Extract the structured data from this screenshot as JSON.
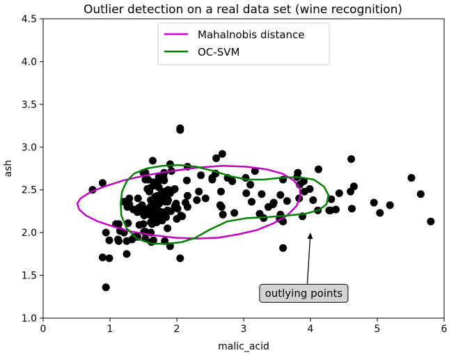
{
  "chart_data": {
    "type": "scatter",
    "title": "Outlier detection on a real data set (wine recognition)",
    "xlabel": "malic_acid",
    "ylabel": "ash",
    "xlim": [
      0,
      6
    ],
    "ylim": [
      1.0,
      4.5
    ],
    "xticks": [
      0,
      1,
      2,
      3,
      4,
      5,
      6
    ],
    "xtick_labels": [
      "0",
      "1",
      "2",
      "3",
      "4",
      "5",
      "6"
    ],
    "yticks": [
      1.0,
      1.5,
      2.0,
      2.5,
      3.0,
      3.5,
      4.0,
      4.5
    ],
    "ytick_labels": [
      "1.0",
      "1.5",
      "2.0",
      "2.5",
      "3.0",
      "3.5",
      "4.0",
      "4.5"
    ],
    "grid": false,
    "legend_position": "top-center",
    "points": [
      [
        1.71,
        2.43
      ],
      [
        1.78,
        2.14
      ],
      [
        2.36,
        2.67
      ],
      [
        1.95,
        2.5
      ],
      [
        2.59,
        2.87
      ],
      [
        1.76,
        2.45
      ],
      [
        1.87,
        2.45
      ],
      [
        2.15,
        2.61
      ],
      [
        1.64,
        2.17
      ],
      [
        1.35,
        2.27
      ],
      [
        2.16,
        2.3
      ],
      [
        1.48,
        2.32
      ],
      [
        1.73,
        2.41
      ],
      [
        1.73,
        2.39
      ],
      [
        1.87,
        2.38
      ],
      [
        1.81,
        2.7
      ],
      [
        1.92,
        2.72
      ],
      [
        1.57,
        2.62
      ],
      [
        1.59,
        2.48
      ],
      [
        3.1,
        2.56
      ],
      [
        1.63,
        2.28
      ],
      [
        3.8,
        2.65
      ],
      [
        1.86,
        2.36
      ],
      [
        1.6,
        2.52
      ],
      [
        1.81,
        2.61
      ],
      [
        2.05,
        3.22
      ],
      [
        1.77,
        2.62
      ],
      [
        1.72,
        2.14
      ],
      [
        1.9,
        2.8
      ],
      [
        1.68,
        2.21
      ],
      [
        1.5,
        2.7
      ],
      [
        1.66,
        2.36
      ],
      [
        1.83,
        2.36
      ],
      [
        1.53,
        2.7
      ],
      [
        1.8,
        2.65
      ],
      [
        1.81,
        2.41
      ],
      [
        1.64,
        2.84
      ],
      [
        1.65,
        2.55
      ],
      [
        1.5,
        2.1
      ],
      [
        3.83,
        2.4
      ],
      [
        1.7,
        2.12
      ],
      [
        1.97,
        2.51
      ],
      [
        1.65,
        2.59
      ],
      [
        1.5,
        2.22
      ],
      [
        3.99,
        2.51
      ],
      [
        3.59,
        2.62
      ],
      [
        1.68,
        2.36
      ],
      [
        2.01,
        2.28
      ],
      [
        2.65,
        2.32
      ],
      [
        1.6,
        2.3
      ],
      [
        1.73,
        2.65
      ],
      [
        1.9,
        2.46
      ],
      [
        3.37,
        2.3
      ],
      [
        1.61,
        2.38
      ],
      [
        1.68,
        2.42
      ],
      [
        1.78,
        2.24
      ],
      [
        1.99,
        2.34
      ],
      [
        1.65,
        2.55
      ],
      [
        1.53,
        2.21
      ],
      [
        1.43,
        2.29
      ],
      [
        0.94,
        1.36
      ],
      [
        1.12,
        1.92
      ],
      [
        2.0,
        2.16
      ],
      [
        1.73,
        2.53
      ],
      [
        1.37,
        1.95
      ],
      [
        1.27,
        2.11
      ],
      [
        1.25,
        1.9
      ],
      [
        1.21,
        2.0
      ],
      [
        1.09,
        2.1
      ],
      [
        1.21,
        2.36
      ],
      [
        1.67,
        2.38
      ],
      [
        0.99,
        1.7
      ],
      [
        1.41,
        1.95
      ],
      [
        1.61,
        2.0
      ],
      [
        1.76,
        2.19
      ],
      [
        1.53,
        2.01
      ],
      [
        4.43,
        2.46
      ],
      [
        2.67,
        2.3
      ],
      [
        1.82,
        1.9
      ],
      [
        0.89,
        1.71
      ],
      [
        2.06,
        2.2
      ],
      [
        1.33,
        1.92
      ],
      [
        1.61,
        2.12
      ],
      [
        2.05,
        1.7
      ],
      [
        1.51,
        2.2
      ],
      [
        1.72,
        2.26
      ],
      [
        1.82,
        2.43
      ],
      [
        1.67,
        2.41
      ],
      [
        2.08,
        2.19
      ],
      [
        1.53,
        2.27
      ],
      [
        1.86,
        2.26
      ],
      [
        1.51,
        2.01
      ],
      [
        1.62,
        2.23
      ],
      [
        1.65,
        2.16
      ],
      [
        1.63,
        2.1
      ],
      [
        1.65,
        1.91
      ],
      [
        1.29,
        2.4
      ],
      [
        1.84,
        2.18
      ],
      [
        1.9,
        1.84
      ],
      [
        1.62,
        1.89
      ],
      [
        1.13,
        2.1
      ],
      [
        0.99,
        1.91
      ],
      [
        3.59,
        1.82
      ],
      [
        1.13,
        1.9
      ],
      [
        1.41,
        2.24
      ],
      [
        1.15,
        2.02
      ],
      [
        1.74,
        2.34
      ],
      [
        1.81,
        2.48
      ],
      [
        3.04,
        2.46
      ],
      [
        3.44,
        2.33
      ],
      [
        1.44,
        2.09
      ],
      [
        1.26,
        2.3
      ],
      [
        2.13,
        2.35
      ],
      [
        1.91,
        2.25
      ],
      [
        1.82,
        2.44
      ],
      [
        3.24,
        2.22
      ],
      [
        1.86,
        2.05
      ],
      [
        0.94,
        2.0
      ],
      [
        1.42,
        2.4
      ],
      [
        1.67,
        2.31
      ],
      [
        2.43,
        2.4
      ],
      [
        4.11,
        2.26
      ],
      [
        4.04,
        2.38
      ],
      [
        2.53,
        2.64
      ],
      [
        1.29,
        2.33
      ],
      [
        1.21,
        2.36
      ],
      [
        1.61,
        2.2
      ],
      [
        1.53,
        1.93
      ],
      [
        2.69,
        2.21
      ],
      [
        2.86,
        2.23
      ],
      [
        4.3,
        2.26
      ],
      [
        3.81,
        2.7
      ],
      [
        4.12,
        2.74
      ],
      [
        3.45,
        2.35
      ],
      [
        2.76,
        2.64
      ],
      [
        2.16,
        2.43
      ],
      [
        1.56,
        2.51
      ],
      [
        3.88,
        2.19
      ],
      [
        3.3,
        2.17
      ],
      [
        5.51,
        2.64
      ],
      [
        3.54,
        2.16
      ],
      [
        3.12,
        2.36
      ],
      [
        3.84,
        2.56
      ],
      [
        4.65,
        2.54
      ],
      [
        3.27,
        2.45
      ],
      [
        4.6,
        2.48
      ],
      [
        3.65,
        2.37
      ],
      [
        2.58,
        2.69
      ],
      [
        4.61,
        2.86
      ],
      [
        3.03,
        2.64
      ],
      [
        3.59,
        2.13
      ],
      [
        3.55,
        2.21
      ],
      [
        4.31,
        2.39
      ],
      [
        2.66,
        2.48
      ],
      [
        4.38,
        2.27
      ],
      [
        5.04,
        2.23
      ],
      [
        3.91,
        2.48
      ],
      [
        4.62,
        2.28
      ],
      [
        1.97,
        2.31
      ],
      [
        5.65,
        2.45
      ],
      [
        3.17,
        2.72
      ],
      [
        2.16,
        2.77
      ],
      [
        2.53,
        2.62
      ],
      [
        5.8,
        2.13
      ],
      [
        3.55,
        2.44
      ],
      [
        4.95,
        2.35
      ],
      [
        2.33,
        2.48
      ],
      [
        1.71,
        2.57
      ],
      [
        1.53,
        2.62
      ],
      [
        2.05,
        3.2
      ],
      [
        2.68,
        2.92
      ],
      [
        0.74,
        2.5
      ],
      [
        0.89,
        2.58
      ],
      [
        1.25,
        1.75
      ],
      [
        2.3,
        2.38
      ],
      [
        3.9,
        2.6
      ],
      [
        4.28,
        2.26
      ],
      [
        1.87,
        2.5
      ],
      [
        5.19,
        2.32
      ],
      [
        2.83,
        2.6
      ]
    ],
    "series": [
      {
        "name": "Mahalnobis distance",
        "color": "#bf00bf",
        "path": [
          [
            0.51,
            2.34
          ],
          [
            0.56,
            2.4
          ],
          [
            0.7,
            2.47
          ],
          [
            0.92,
            2.54
          ],
          [
            1.2,
            2.61
          ],
          [
            1.54,
            2.67
          ],
          [
            1.92,
            2.72
          ],
          [
            2.31,
            2.76
          ],
          [
            2.69,
            2.78
          ],
          [
            3.04,
            2.77
          ],
          [
            3.34,
            2.74
          ],
          [
            3.58,
            2.69
          ],
          [
            3.75,
            2.61
          ],
          [
            3.84,
            2.52
          ],
          [
            3.85,
            2.42
          ],
          [
            3.79,
            2.31
          ],
          [
            3.65,
            2.2
          ],
          [
            3.45,
            2.11
          ],
          [
            3.2,
            2.03
          ],
          [
            2.92,
            1.98
          ],
          [
            2.62,
            1.94
          ],
          [
            2.3,
            1.93
          ],
          [
            1.97,
            1.94
          ],
          [
            1.64,
            1.97
          ],
          [
            1.33,
            2.01
          ],
          [
            1.05,
            2.07
          ],
          [
            0.82,
            2.13
          ],
          [
            0.64,
            2.2
          ],
          [
            0.54,
            2.27
          ],
          [
            0.51,
            2.34
          ]
        ]
      },
      {
        "name": "OC-SVM",
        "color": "#007f00",
        "path": [
          [
            1.16,
            2.34
          ],
          [
            1.18,
            2.48
          ],
          [
            1.25,
            2.6
          ],
          [
            1.36,
            2.69
          ],
          [
            1.55,
            2.75
          ],
          [
            1.78,
            2.78
          ],
          [
            2.03,
            2.79
          ],
          [
            2.29,
            2.77
          ],
          [
            2.55,
            2.72
          ],
          [
            2.8,
            2.66
          ],
          [
            3.05,
            2.62
          ],
          [
            3.3,
            2.62
          ],
          [
            3.55,
            2.64
          ],
          [
            3.82,
            2.65
          ],
          [
            4.05,
            2.62
          ],
          [
            4.2,
            2.54
          ],
          [
            4.27,
            2.44
          ],
          [
            4.24,
            2.33
          ],
          [
            4.12,
            2.26
          ],
          [
            3.92,
            2.22
          ],
          [
            3.65,
            2.2
          ],
          [
            3.35,
            2.18
          ],
          [
            3.05,
            2.17
          ],
          [
            2.75,
            2.13
          ],
          [
            2.48,
            2.03
          ],
          [
            2.28,
            1.94
          ],
          [
            2.08,
            1.89
          ],
          [
            1.86,
            1.87
          ],
          [
            1.62,
            1.87
          ],
          [
            1.4,
            1.93
          ],
          [
            1.25,
            2.05
          ],
          [
            1.17,
            2.2
          ],
          [
            1.16,
            2.34
          ]
        ]
      }
    ],
    "annotation": {
      "text": "outlying points",
      "arrow_to": [
        4.0,
        2.0
      ],
      "label_at": [
        3.9,
        1.29
      ]
    }
  }
}
